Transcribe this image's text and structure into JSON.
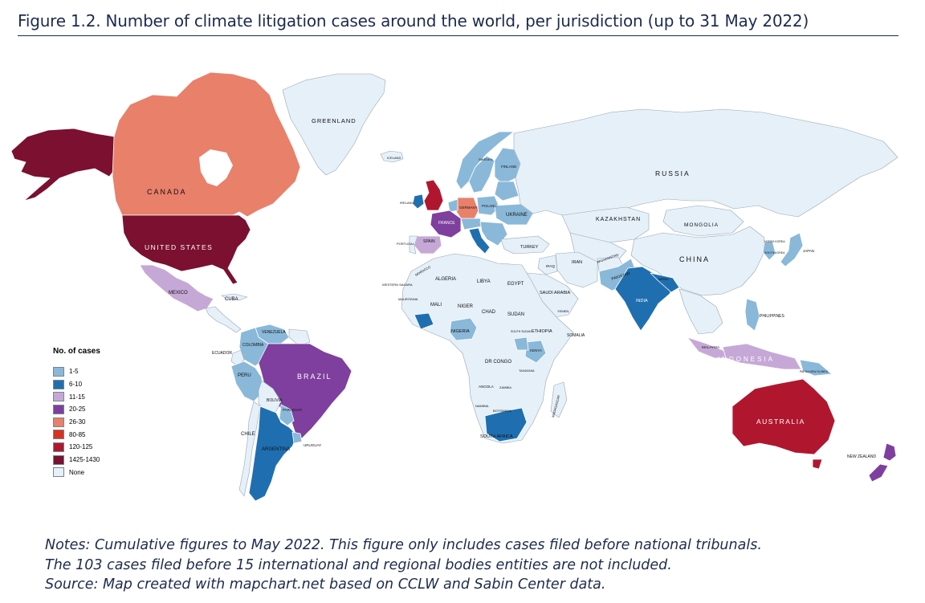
{
  "title": "Figure 1.2. Number of climate litigation cases around the world, per jurisdiction (up to 31 May 2022)",
  "legend": {
    "title": "No. of cases",
    "items": [
      {
        "label": "1-5",
        "color": "#8ab8d9"
      },
      {
        "label": "6-10",
        "color": "#1f6fb0"
      },
      {
        "label": "11-15",
        "color": "#c6a8d7"
      },
      {
        "label": "20-25",
        "color": "#7e3f9e"
      },
      {
        "label": "26-30",
        "color": "#e9806a"
      },
      {
        "label": "80-85",
        "color": "#d9321f"
      },
      {
        "label": "120-125",
        "color": "#b0172e"
      },
      {
        "label": "1425-1430",
        "color": "#7b1030"
      },
      {
        "label": "None",
        "color": "#e5f0f9"
      }
    ]
  },
  "labels": {
    "greenland": "GREENLAND",
    "canada": "CANADA",
    "united_states": "UNITED STATES",
    "mexico": "MEXICO",
    "cuba": "CUBA",
    "venezuela": "VENEZUELA",
    "colombia": "COLOMBIA",
    "ecuador": "ECUADOR",
    "peru": "PERU",
    "brazil": "BRAZIL",
    "bolivia": "BOLIVIA",
    "paraguay": "PARAGUAY",
    "chile": "CHILE",
    "argentina": "ARGENTINA",
    "uruguay": "URUGUAY",
    "iceland": "ICELAND",
    "ireland": "IRELAND",
    "sweden": "SWEDEN",
    "finland": "FINLAND",
    "poland": "POLAND",
    "germany": "GERMANY",
    "ukraine": "UKRAINE",
    "france": "FRANCE",
    "spain": "SPAIN",
    "portugal": "PORTUGAL",
    "turkey": "TURKEY",
    "russia": "RUSSIA",
    "kazakhstan": "KAZAKHSTAN",
    "mongolia": "MONGOLIA",
    "china": "CHINA",
    "afghanistan": "AFGHANISTAN",
    "iran": "IRAN",
    "iraq": "IRAQ",
    "pakistan": "PAKISTAN",
    "india": "INDIA",
    "nepal": "NEPAL",
    "japan": "JAPAN",
    "south_korea": "SOUTH KOREA",
    "north_korea": "NORTH KOREA",
    "philippines": "PHILIPPINES",
    "malaysia": "MALAYSIA",
    "indonesia": "INDONESIA",
    "papua_new_guinea": "PAPUA NEW GUINEA",
    "australia": "AUSTRALIA",
    "new_zealand": "NEW ZEALAND",
    "morocco": "MOROCCO",
    "western_sahara": "WESTERN SAHARA",
    "algeria": "ALGERIA",
    "libya": "LIBYA",
    "egypt": "EGYPT",
    "saudi_arabia": "SAUDI ARABIA",
    "yemen": "YEMEN",
    "mauritania": "MAURITANIA",
    "mali": "MALI",
    "niger": "NIGER",
    "chad": "CHAD",
    "sudan": "SUDAN",
    "south_sudan": "SOUTH SUDAN",
    "ethiopia": "ETHIOPIA",
    "somalia": "SOMALIA",
    "nigeria": "NIGERIA",
    "kenya": "KENYA",
    "dr_congo": "DR CONGO",
    "tanzania": "TANZANIA",
    "angola": "ANGOLA",
    "zambia": "ZAMBIA",
    "namibia": "NAMIBIA",
    "botswana": "BOTSWANA",
    "madagascar": "MADAGASCAR",
    "south_africa": "SOUTH AFRICA"
  },
  "notes": [
    "Notes: Cumulative figures to May 2022. This figure only includes cases filed before national tribunals.",
    "The 103 cases filed before 15 international and regional bodies entities are not included.",
    "Source: Map created with mapchart.net based on CCLW and Sabin Center data."
  ]
}
